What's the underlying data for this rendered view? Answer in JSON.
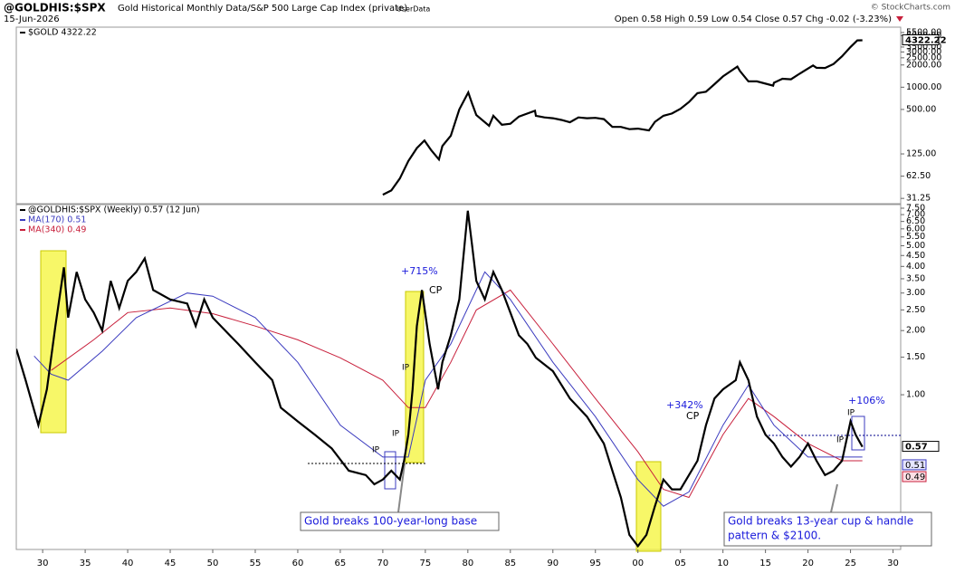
{
  "header": {
    "title": "@GOLDHIS:$SPX",
    "subtitle": "Gold Historical Monthly Data/S&P 500 Large Cap Index (private)",
    "source": "UserData",
    "date": "15-Jun-2026",
    "quote": "Open 0.58  High 0.59  Low 0.54  Close 0.57  Chg -0.02 (-3.23%)",
    "credit": "© StockCharts.com"
  },
  "chart_data": [
    {
      "type": "line",
      "log_scale": true,
      "grid": false,
      "xlim": [
        1926.9,
        2030.9
      ],
      "ylim": [
        26.5,
        6500
      ],
      "yticks": [
        {
          "value": 31.25,
          "label": "31.25"
        },
        {
          "value": 62.5,
          "label": "62.50"
        },
        {
          "value": 125,
          "label": "125.00"
        },
        {
          "value": 500,
          "label": "500.00"
        },
        {
          "value": 1000,
          "label": "1000.00"
        },
        {
          "value": 2000,
          "label": "2000.00"
        },
        {
          "value": 2500,
          "label": "2500.00"
        },
        {
          "value": 3000,
          "label": "3000.00"
        },
        {
          "value": 3500,
          "label": "3500.00"
        },
        {
          "value": 5000,
          "label": "5000.00"
        },
        {
          "value": 5500,
          "label": "5500.00"
        }
      ],
      "series": [
        {
          "name": "$GOLD 4322.22",
          "color": "#000000",
          "last_label": "4322.22",
          "x": [
            1970,
            1971,
            1972,
            1973,
            1974,
            1974.9,
            1975.7,
            1976.6,
            1977,
            1978,
            1979,
            1980.05,
            1980.5,
            1981,
            1982.5,
            1983,
            1984,
            1985,
            1986,
            1987.9,
            1988,
            1989,
            1990,
            1991,
            1992,
            1993,
            1994,
            1995,
            1996,
            1997,
            1998,
            1999,
            2000,
            2001.3,
            2002,
            2003,
            2004,
            2005,
            2006,
            2007,
            2008,
            2009,
            2010,
            2011.7,
            2012,
            2013,
            2014,
            2015.9,
            2016,
            2017,
            2018,
            2019,
            2020.6,
            2021,
            2022,
            2023,
            2024,
            2025,
            2025.8,
            2026.4
          ],
          "values": [
            35,
            40,
            58,
            100,
            150,
            190,
            140,
            105,
            160,
            220,
            500,
            850,
            600,
            420,
            300,
            410,
            310,
            320,
            400,
            480,
            410,
            390,
            380,
            360,
            335,
            390,
            380,
            385,
            370,
            290,
            290,
            270,
            275,
            260,
            340,
            410,
            440,
            510,
            630,
            830,
            870,
            1100,
            1400,
            1900,
            1660,
            1200,
            1200,
            1050,
            1150,
            1300,
            1280,
            1520,
            1970,
            1830,
            1820,
            2060,
            2620,
            3500,
            4300,
            4322.22
          ]
        }
      ]
    },
    {
      "type": "line",
      "log_scale": true,
      "grid": false,
      "xlim": [
        1926.9,
        2030.9
      ],
      "ylim": [
        0.188,
        7.8
      ],
      "xticks": [
        {
          "value": 1930,
          "label": "30"
        },
        {
          "value": 1935,
          "label": "35"
        },
        {
          "value": 1940,
          "label": "40"
        },
        {
          "value": 1945,
          "label": "45"
        },
        {
          "value": 1950,
          "label": "50"
        },
        {
          "value": 1955,
          "label": "55"
        },
        {
          "value": 1960,
          "label": "60"
        },
        {
          "value": 1965,
          "label": "65"
        },
        {
          "value": 1970,
          "label": "70"
        },
        {
          "value": 1975,
          "label": "75"
        },
        {
          "value": 1980,
          "label": "80"
        },
        {
          "value": 1985,
          "label": "85"
        },
        {
          "value": 1990,
          "label": "90"
        },
        {
          "value": 1995,
          "label": "95"
        },
        {
          "value": 2000,
          "label": "00"
        },
        {
          "value": 2005,
          "label": "05"
        },
        {
          "value": 2010,
          "label": "10"
        },
        {
          "value": 2015,
          "label": "15"
        },
        {
          "value": 2020,
          "label": "20"
        },
        {
          "value": 2025,
          "label": "25"
        },
        {
          "value": 2030,
          "label": "30"
        }
      ],
      "yticks": [
        {
          "value": 7.5,
          "label": "7.50"
        },
        {
          "value": 7,
          "label": "7.00"
        },
        {
          "value": 6.5,
          "label": "6.50"
        },
        {
          "value": 6,
          "label": "6.00"
        },
        {
          "value": 5.5,
          "label": "5.50"
        },
        {
          "value": 5,
          "label": "5.00"
        },
        {
          "value": 4.5,
          "label": "4.50"
        },
        {
          "value": 4,
          "label": "4.00"
        },
        {
          "value": 3.5,
          "label": "3.50"
        },
        {
          "value": 3,
          "label": "3.00"
        },
        {
          "value": 2.5,
          "label": "2.50"
        },
        {
          "value": 2,
          "label": "2.00"
        },
        {
          "value": 1.5,
          "label": "1.50"
        },
        {
          "value": 1,
          "label": "1.00"
        }
      ],
      "series": [
        {
          "name": "@GOLDHIS:$SPX (Weekly) 0.57 (12 Jun)",
          "color": "#000000",
          "last_label": "0.57",
          "x": [
            1926.9,
            1928,
            1929.5,
            1930.5,
            1931.5,
            1932.5,
            1933,
            1934,
            1935,
            1936,
            1937,
            1938,
            1939,
            1940,
            1941,
            1942,
            1943,
            1945,
            1947,
            1948,
            1949,
            1950,
            1952,
            1953,
            1955,
            1957,
            1958,
            1960,
            1962,
            1964,
            1966,
            1968,
            1969,
            1970,
            1971,
            1972,
            1972.5,
            1973,
            1973.5,
            1974,
            1974.6,
            1975.5,
            1976.5,
            1977,
            1978,
            1979,
            1980,
            1980.5,
            1981,
            1982,
            1983,
            1984,
            1985,
            1986,
            1987,
            1988,
            1990,
            1992,
            1994,
            1996,
            1997,
            1998,
            1999,
            2000,
            2001,
            2002,
            2003,
            2004,
            2005,
            2006,
            2007,
            2008,
            2009,
            2010,
            2011.5,
            2012,
            2013,
            2014,
            2015,
            2016,
            2017,
            2018,
            2019,
            2020,
            2021,
            2022,
            2023,
            2024,
            2025,
            2025.6,
            2026.4
          ],
          "values": [
            1.64,
            1.17,
            0.72,
            1.06,
            2.1,
            3.96,
            2.3,
            3.77,
            2.8,
            2.43,
            2.0,
            3.42,
            2.55,
            3.42,
            3.77,
            4.36,
            3.1,
            2.8,
            2.68,
            2.1,
            2.8,
            2.3,
            1.9,
            1.73,
            1.42,
            1.17,
            0.87,
            0.75,
            0.65,
            0.56,
            0.44,
            0.42,
            0.38,
            0.4,
            0.44,
            0.4,
            0.49,
            0.65,
            1.06,
            2.1,
            3.1,
            1.73,
            1.06,
            1.42,
            1.9,
            2.8,
            7.3,
            5.04,
            3.42,
            2.8,
            3.77,
            3.1,
            2.43,
            1.9,
            1.73,
            1.49,
            1.29,
            0.96,
            0.79,
            0.59,
            0.44,
            0.33,
            0.22,
            0.195,
            0.22,
            0.3,
            0.4,
            0.36,
            0.36,
            0.42,
            0.49,
            0.72,
            0.96,
            1.06,
            1.17,
            1.42,
            1.17,
            0.79,
            0.65,
            0.59,
            0.51,
            0.46,
            0.51,
            0.59,
            0.49,
            0.42,
            0.44,
            0.49,
            0.75,
            0.65,
            0.57
          ]
        },
        {
          "name": "MA(170) 0.51",
          "color": "#3b3bbf",
          "last_label": "0.51",
          "x": [
            1929,
            1931,
            1933,
            1937,
            1941,
            1947,
            1950,
            1955,
            1960,
            1965,
            1970,
            1973,
            1975,
            1978,
            1982,
            1985,
            1990,
            1995,
            2000,
            2003,
            2006,
            2010,
            2013,
            2016,
            2020,
            2024,
            2026.4
          ],
          "values": [
            1.52,
            1.25,
            1.17,
            1.6,
            2.3,
            3.0,
            2.9,
            2.3,
            1.42,
            0.72,
            0.51,
            0.51,
            1.17,
            1.73,
            3.77,
            2.8,
            1.42,
            0.79,
            0.4,
            0.3,
            0.35,
            0.72,
            1.11,
            0.72,
            0.51,
            0.51,
            0.51
          ]
        },
        {
          "name": "MA(340) 0.49",
          "color": "#c8203c",
          "last_label": "0.49",
          "x": [
            1931,
            1936,
            1940,
            1945,
            1950,
            1955,
            1960,
            1965,
            1970,
            1973,
            1975,
            1978,
            1981,
            1985,
            1990,
            1995,
            2000,
            2003,
            2006,
            2010,
            2013,
            2016,
            2020,
            2024,
            2026.4
          ],
          "values": [
            1.3,
            1.81,
            2.43,
            2.55,
            2.4,
            2.1,
            1.81,
            1.49,
            1.17,
            0.87,
            0.87,
            1.42,
            2.5,
            3.1,
            1.73,
            0.96,
            0.54,
            0.36,
            0.33,
            0.65,
            0.96,
            0.79,
            0.59,
            0.49,
            0.49
          ]
        }
      ],
      "annotations": [
        "+715%",
        "CP",
        "IP",
        "IP",
        "IP",
        "+342%",
        "CP",
        "+106%",
        "IP",
        "IP"
      ],
      "callouts": [
        [
          "Gold breaks 100-year-long base"
        ],
        [
          "Gold breaks 13-year cup & handle",
          "pattern & $2100."
        ]
      ]
    }
  ]
}
